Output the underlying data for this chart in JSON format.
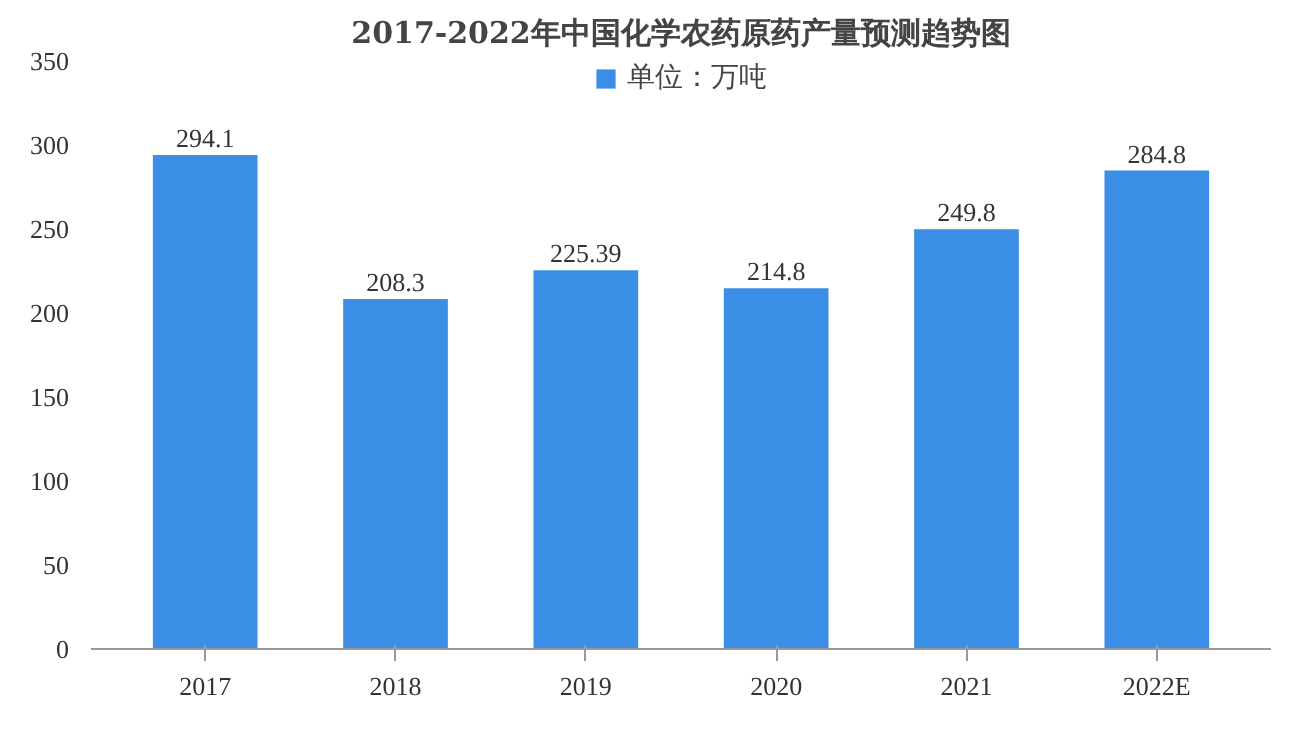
{
  "chart_data": {
    "type": "bar",
    "title": "2017-2022年中国化学农药原药产量预测趋势图",
    "categories": [
      "2017",
      "2018",
      "2019",
      "2020",
      "2021",
      "2022E"
    ],
    "series": [
      {
        "name": "单位：万吨",
        "color": "#3a8ee6",
        "values": [
          294.1,
          208.3,
          225.39,
          214.8,
          249.8,
          284.8
        ]
      }
    ],
    "ylim": [
      0,
      350
    ],
    "yticks": [
      0,
      50,
      100,
      150,
      200,
      250,
      300,
      350
    ],
    "data_labels": true,
    "legend": "top",
    "grid": false
  }
}
